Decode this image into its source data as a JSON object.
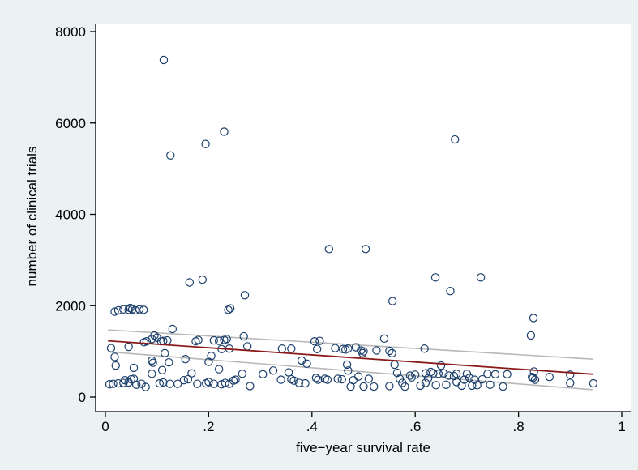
{
  "chart_data": {
    "type": "scatter",
    "title": "",
    "xlabel": "five−year survival rate",
    "ylabel": "number of clinical trials",
    "xlim": [
      0,
      1
    ],
    "ylim": [
      0,
      8000
    ],
    "xticks": [
      0,
      0.2,
      0.4,
      0.6,
      0.8,
      1
    ],
    "xtick_labels": [
      "0",
      ".2",
      ".4",
      ".6",
      ".8",
      "1"
    ],
    "yticks": [
      0,
      2000,
      4000,
      6000,
      8000
    ],
    "ytick_labels": [
      "0",
      "2000",
      "4000",
      "6000",
      "8000"
    ],
    "grid": false,
    "legend": "none",
    "colors": {
      "background": "#eaf2f3",
      "plot_area": "#ffffff",
      "marker": "#1b3f6b",
      "fit_line": "#8b1a1a",
      "ci_band": "#b8b8b8"
    },
    "fit_line": {
      "x": [
        0.005,
        0.945
      ],
      "y": [
        1230,
        500
      ]
    },
    "ci_upper": {
      "x": [
        0.005,
        0.945
      ],
      "y": [
        1470,
        830
      ]
    },
    "ci_lower": {
      "x": [
        0.005,
        0.945
      ],
      "y": [
        990,
        160
      ]
    },
    "series": [
      {
        "marker": "hollow-circle",
        "points": [
          [
            0.113,
            7380
          ],
          [
            0.126,
            5290
          ],
          [
            0.194,
            5540
          ],
          [
            0.23,
            5810
          ],
          [
            0.677,
            5640
          ],
          [
            0.433,
            3240
          ],
          [
            0.504,
            3240
          ],
          [
            0.188,
            2570
          ],
          [
            0.163,
            2510
          ],
          [
            0.27,
            2230
          ],
          [
            0.639,
            2620
          ],
          [
            0.668,
            2320
          ],
          [
            0.727,
            2620
          ],
          [
            0.556,
            2100
          ],
          [
            0.238,
            1910
          ],
          [
            0.242,
            1940
          ],
          [
            0.829,
            1730
          ],
          [
            0.824,
            1350
          ],
          [
            0.018,
            1870
          ],
          [
            0.025,
            1900
          ],
          [
            0.035,
            1920
          ],
          [
            0.045,
            1910
          ],
          [
            0.048,
            1950
          ],
          [
            0.052,
            1920
          ],
          [
            0.058,
            1900
          ],
          [
            0.066,
            1920
          ],
          [
            0.074,
            1910
          ],
          [
            0.011,
            1070
          ],
          [
            0.018,
            880
          ],
          [
            0.02,
            690
          ],
          [
            0.045,
            1100
          ],
          [
            0.055,
            640
          ],
          [
            0.075,
            1200
          ],
          [
            0.08,
            1220
          ],
          [
            0.09,
            1270
          ],
          [
            0.095,
            1350
          ],
          [
            0.1,
            1300
          ],
          [
            0.108,
            1220
          ],
          [
            0.112,
            1230
          ],
          [
            0.12,
            1240
          ],
          [
            0.13,
            1490
          ],
          [
            0.115,
            960
          ],
          [
            0.09,
            800
          ],
          [
            0.092,
            750
          ],
          [
            0.11,
            590
          ],
          [
            0.09,
            510
          ],
          [
            0.123,
            760
          ],
          [
            0.155,
            830
          ],
          [
            0.167,
            520
          ],
          [
            0.175,
            1220
          ],
          [
            0.18,
            1250
          ],
          [
            0.2,
            770
          ],
          [
            0.205,
            900
          ],
          [
            0.21,
            1240
          ],
          [
            0.22,
            1230
          ],
          [
            0.225,
            1050
          ],
          [
            0.23,
            1250
          ],
          [
            0.235,
            1270
          ],
          [
            0.24,
            1060
          ],
          [
            0.22,
            610
          ],
          [
            0.265,
            510
          ],
          [
            0.268,
            1330
          ],
          [
            0.275,
            1110
          ],
          [
            0.008,
            280
          ],
          [
            0.015,
            290
          ],
          [
            0.025,
            300
          ],
          [
            0.035,
            310
          ],
          [
            0.038,
            370
          ],
          [
            0.045,
            320
          ],
          [
            0.05,
            390
          ],
          [
            0.055,
            400
          ],
          [
            0.06,
            270
          ],
          [
            0.07,
            290
          ],
          [
            0.078,
            220
          ],
          [
            0.105,
            300
          ],
          [
            0.112,
            320
          ],
          [
            0.125,
            290
          ],
          [
            0.14,
            290
          ],
          [
            0.152,
            370
          ],
          [
            0.16,
            390
          ],
          [
            0.178,
            290
          ],
          [
            0.195,
            300
          ],
          [
            0.2,
            330
          ],
          [
            0.21,
            290
          ],
          [
            0.225,
            280
          ],
          [
            0.232,
            310
          ],
          [
            0.24,
            290
          ],
          [
            0.248,
            360
          ],
          [
            0.252,
            380
          ],
          [
            0.28,
            240
          ],
          [
            0.305,
            500
          ],
          [
            0.325,
            580
          ],
          [
            0.342,
            1060
          ],
          [
            0.36,
            1060
          ],
          [
            0.34,
            380
          ],
          [
            0.355,
            540
          ],
          [
            0.36,
            390
          ],
          [
            0.365,
            360
          ],
          [
            0.375,
            310
          ],
          [
            0.38,
            800
          ],
          [
            0.387,
            300
          ],
          [
            0.39,
            730
          ],
          [
            0.405,
            1220
          ],
          [
            0.415,
            1230
          ],
          [
            0.41,
            1050
          ],
          [
            0.408,
            420
          ],
          [
            0.412,
            380
          ],
          [
            0.425,
            400
          ],
          [
            0.43,
            380
          ],
          [
            0.445,
            1070
          ],
          [
            0.45,
            400
          ],
          [
            0.458,
            390
          ],
          [
            0.46,
            1050
          ],
          [
            0.465,
            1040
          ],
          [
            0.468,
            710
          ],
          [
            0.47,
            580
          ],
          [
            0.48,
            370
          ],
          [
            0.49,
            450
          ],
          [
            0.475,
            230
          ],
          [
            0.5,
            230
          ],
          [
            0.495,
            1020
          ],
          [
            0.498,
            960
          ],
          [
            0.51,
            400
          ],
          [
            0.52,
            230
          ],
          [
            0.525,
            1020
          ],
          [
            0.54,
            1280
          ],
          [
            0.55,
            1010
          ],
          [
            0.555,
            960
          ],
          [
            0.56,
            710
          ],
          [
            0.565,
            530
          ],
          [
            0.57,
            400
          ],
          [
            0.58,
            230
          ],
          [
            0.593,
            430
          ],
          [
            0.6,
            490
          ],
          [
            0.61,
            250
          ],
          [
            0.618,
            1060
          ],
          [
            0.62,
            520
          ],
          [
            0.625,
            410
          ],
          [
            0.63,
            550
          ],
          [
            0.635,
            520
          ],
          [
            0.64,
            260
          ],
          [
            0.645,
            510
          ],
          [
            0.65,
            690
          ],
          [
            0.655,
            520
          ],
          [
            0.66,
            270
          ],
          [
            0.665,
            470
          ],
          [
            0.675,
            460
          ],
          [
            0.68,
            510
          ],
          [
            0.69,
            250
          ],
          [
            0.695,
            380
          ],
          [
            0.7,
            510
          ],
          [
            0.705,
            420
          ],
          [
            0.71,
            250
          ],
          [
            0.715,
            380
          ],
          [
            0.72,
            260
          ],
          [
            0.73,
            390
          ],
          [
            0.745,
            270
          ],
          [
            0.755,
            500
          ],
          [
            0.77,
            230
          ],
          [
            0.778,
            500
          ],
          [
            0.826,
            440
          ],
          [
            0.828,
            420
          ],
          [
            0.83,
            560
          ],
          [
            0.832,
            380
          ],
          [
            0.86,
            440
          ],
          [
            0.9,
            310
          ],
          [
            0.9,
            490
          ],
          [
            0.945,
            300
          ],
          [
            0.55,
            240
          ],
          [
            0.575,
            310
          ],
          [
            0.62,
            310
          ],
          [
            0.74,
            510
          ],
          [
            0.68,
            330
          ],
          [
            0.59,
            470
          ],
          [
            0.47,
            1060
          ],
          [
            0.485,
            1090
          ],
          [
            0.5,
            1000
          ]
        ]
      }
    ]
  }
}
